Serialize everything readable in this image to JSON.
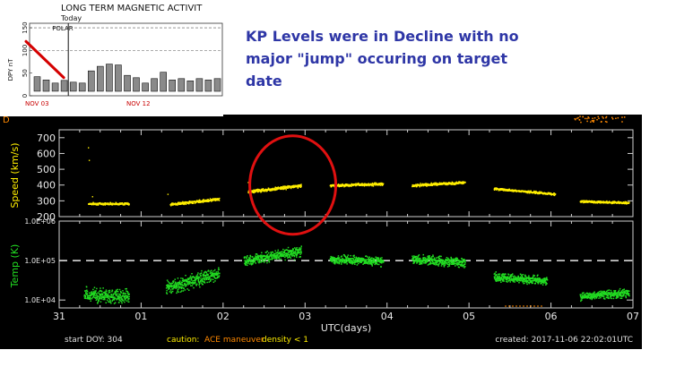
{
  "annotation": {
    "lines": [
      "KP Levels were in Decline with no",
      "major \"jump\" occuring on target",
      "date"
    ],
    "color": "#2e36a6"
  },
  "inset": {
    "title": "LONG TERM MAGNETIC ACTIVIT",
    "today_label": "Today",
    "polar_label": "POLAR",
    "ylabel": "DPY nT",
    "ytick_labels": [
      "0",
      "50",
      "100",
      "150"
    ],
    "date_labels": [
      "NOV 03",
      "NOV 12"
    ],
    "chart_data": {
      "type": "bar",
      "title": "LONG TERM MAGNETIC ACTIVIT",
      "ylabel": "DPY nT",
      "ylim": [
        0,
        160
      ],
      "values": [
        42,
        35,
        28,
        34,
        30,
        28,
        55,
        65,
        70,
        68,
        45,
        40,
        28,
        38,
        52,
        35,
        38,
        33,
        38,
        35,
        38
      ],
      "today_index": 4,
      "dashed_levels": [
        100,
        150
      ],
      "trend_line": {
        "from": [
          0,
          120
        ],
        "to": [
          3,
          40
        ],
        "color": "#d40000"
      }
    }
  },
  "main": {
    "speed_ylabel": "Speed (km/s)",
    "temp_ylabel": "Temp (K)",
    "speed_ticks": [
      "700",
      "600",
      "500",
      "400",
      "300",
      "200"
    ],
    "temp_ticks": [
      "1.0E+06",
      "1.0E+05",
      "1.0E+04"
    ],
    "x_tick_labels": [
      "31",
      "01",
      "02",
      "03",
      "04",
      "05",
      "06",
      "07"
    ],
    "xlabel": "UTC(days)",
    "footer": {
      "start_doy": "start DOY: 304",
      "caution": "caution:",
      "ace_maneuver": "ACE maneuver",
      "density": "density < 1",
      "created": "created: 2017-11-06 22:02:01UTC"
    },
    "top_strip_label": "D",
    "colors": {
      "speed": "#ffee00",
      "temp": "#22dd22",
      "frame": "#d0d0d0",
      "caution_orange": "#ff8800",
      "highlight_circle": "#e01010"
    },
    "highlight": {
      "day_center": 2.85,
      "speed_center": 400
    }
  },
  "chart_data": [
    {
      "type": "scatter",
      "name": "speed",
      "ylabel": "Speed (km/s)",
      "xlabel": "UTC(days)",
      "ylim": [
        200,
        750
      ],
      "xlim": [
        0,
        7
      ],
      "segments": [
        {
          "x0": 0.35,
          "x1": 0.85,
          "y0": 285,
          "y1": 285,
          "noise": 10
        },
        {
          "x0": 1.35,
          "x1": 1.95,
          "y0": 280,
          "y1": 315,
          "noise": 12
        },
        {
          "x0": 2.3,
          "x1": 2.95,
          "y0": 360,
          "y1": 400,
          "noise": 15
        },
        {
          "x0": 3.3,
          "x1": 3.95,
          "y0": 400,
          "y1": 410,
          "noise": 12
        },
        {
          "x0": 4.3,
          "x1": 4.95,
          "y0": 400,
          "y1": 420,
          "noise": 12
        },
        {
          "x0": 5.3,
          "x1": 6.05,
          "y0": 380,
          "y1": 345,
          "noise": 10
        },
        {
          "x0": 6.35,
          "x1": 6.95,
          "y0": 300,
          "y1": 290,
          "noise": 10
        }
      ]
    },
    {
      "type": "scatter",
      "name": "temp",
      "ylabel": "Temp (K)",
      "xlabel": "UTC(days)",
      "ylim_log10": [
        3.8,
        6
      ],
      "xlim": [
        0,
        7
      ],
      "dashed_level": 100000,
      "segments": [
        {
          "x0": 0.3,
          "x1": 0.85,
          "y0": 4.15,
          "y1": 4.1,
          "noise": 0.25
        },
        {
          "x0": 1.3,
          "x1": 1.95,
          "y0": 4.3,
          "y1": 4.7,
          "noise": 0.25
        },
        {
          "x0": 2.25,
          "x1": 2.95,
          "y0": 5.0,
          "y1": 5.25,
          "noise": 0.2
        },
        {
          "x0": 3.3,
          "x1": 3.95,
          "y0": 5.05,
          "y1": 5.0,
          "noise": 0.15
        },
        {
          "x0": 4.3,
          "x1": 4.95,
          "y0": 5.05,
          "y1": 4.95,
          "noise": 0.18
        },
        {
          "x0": 5.3,
          "x1": 5.95,
          "y0": 4.6,
          "y1": 4.5,
          "noise": 0.15
        },
        {
          "x0": 6.35,
          "x1": 6.95,
          "y0": 4.1,
          "y1": 4.2,
          "noise": 0.15
        }
      ]
    }
  ]
}
